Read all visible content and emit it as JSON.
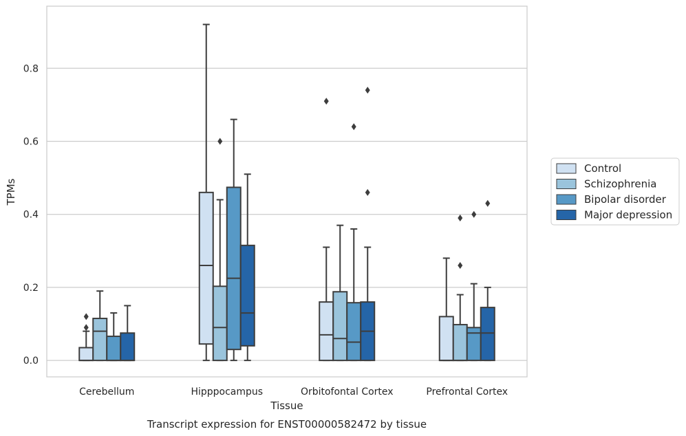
{
  "caption": "Transcript expression for ENST00000582472 by tissue",
  "chart_data": {
    "type": "boxplot",
    "xlabel": "Tissue",
    "ylabel": "TPMs",
    "ylim": [
      -0.045,
      0.97
    ],
    "yticks": [
      0.0,
      0.2,
      0.4,
      0.6,
      0.8
    ],
    "ytick_labels": [
      "0.0",
      "0.2",
      "0.4",
      "0.6",
      "0.8"
    ],
    "grid": "horizontal",
    "legend_placement": "right",
    "categories": [
      "Cerebellum",
      "Hipppocampus",
      "Orbitofontal Cortex",
      "Prefrontal Cortex"
    ],
    "series": [
      {
        "name": "Control",
        "color": "#d0e1f2",
        "boxes": [
          {
            "q1": 0.0,
            "median": 0.0,
            "q3": 0.035,
            "whislo": 0.0,
            "whishi": 0.08,
            "fliers": [
              0.09,
              0.12
            ]
          },
          {
            "q1": 0.045,
            "median": 0.26,
            "q3": 0.46,
            "whislo": 0.0,
            "whishi": 0.92,
            "fliers": []
          },
          {
            "q1": 0.0,
            "median": 0.07,
            "q3": 0.16,
            "whislo": 0.0,
            "whishi": 0.31,
            "fliers": [
              0.71
            ]
          },
          {
            "q1": 0.0,
            "median": 0.0,
            "q3": 0.12,
            "whislo": 0.0,
            "whishi": 0.28,
            "fliers": []
          }
        ]
      },
      {
        "name": "Schizophrenia",
        "color": "#9ac4dc",
        "boxes": [
          {
            "q1": 0.0,
            "median": 0.08,
            "q3": 0.115,
            "whislo": 0.0,
            "whishi": 0.19,
            "fliers": []
          },
          {
            "q1": 0.0,
            "median": 0.09,
            "q3": 0.203,
            "whislo": 0.0,
            "whishi": 0.44,
            "fliers": [
              0.6
            ]
          },
          {
            "q1": 0.0,
            "median": 0.06,
            "q3": 0.188,
            "whislo": 0.0,
            "whishi": 0.37,
            "fliers": []
          },
          {
            "q1": 0.0,
            "median": 0.0,
            "q3": 0.098,
            "whislo": 0.0,
            "whishi": 0.18,
            "fliers": [
              0.26,
              0.39
            ]
          }
        ]
      },
      {
        "name": "Bipolar disorder",
        "color": "#5799c6",
        "boxes": [
          {
            "q1": 0.0,
            "median": 0.0,
            "q3": 0.066,
            "whislo": 0.0,
            "whishi": 0.13,
            "fliers": []
          },
          {
            "q1": 0.03,
            "median": 0.225,
            "q3": 0.474,
            "whislo": 0.0,
            "whishi": 0.66,
            "fliers": []
          },
          {
            "q1": 0.0,
            "median": 0.05,
            "q3": 0.158,
            "whislo": 0.0,
            "whishi": 0.36,
            "fliers": [
              0.64
            ]
          },
          {
            "q1": 0.0,
            "median": 0.075,
            "q3": 0.09,
            "whislo": 0.0,
            "whishi": 0.21,
            "fliers": [
              0.4
            ]
          }
        ]
      },
      {
        "name": "Major depression",
        "color": "#2565a8",
        "boxes": [
          {
            "q1": 0.0,
            "median": 0.0,
            "q3": 0.075,
            "whislo": 0.0,
            "whishi": 0.15,
            "fliers": []
          },
          {
            "q1": 0.04,
            "median": 0.13,
            "q3": 0.315,
            "whislo": 0.0,
            "whishi": 0.51,
            "fliers": []
          },
          {
            "q1": 0.0,
            "median": 0.08,
            "q3": 0.16,
            "whislo": 0.0,
            "whishi": 0.31,
            "fliers": [
              0.46,
              0.74
            ]
          },
          {
            "q1": 0.0,
            "median": 0.075,
            "q3": 0.145,
            "whislo": 0.0,
            "whishi": 0.2,
            "fliers": [
              0.43
            ]
          }
        ]
      }
    ]
  }
}
